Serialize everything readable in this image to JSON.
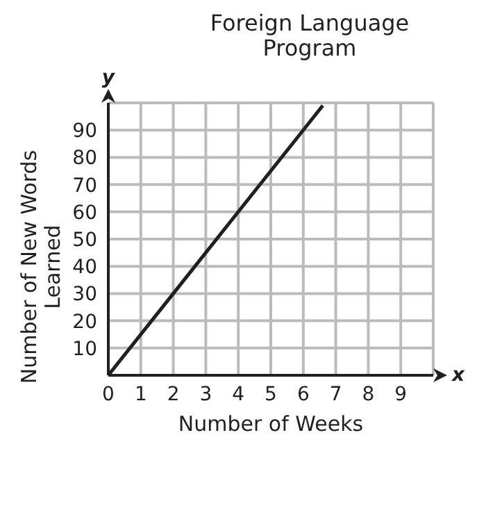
{
  "chart_data": {
    "type": "line",
    "title": "Foreign Language Program",
    "xlabel": "Number of Weeks",
    "ylabel": "Number of New Words Learned",
    "x": [
      0,
      2,
      4,
      6,
      6.6
    ],
    "series": [
      {
        "color": "#231f20",
        "values": [
          0,
          30,
          60,
          90,
          99
        ]
      }
    ],
    "xlim": [
      0,
      10
    ],
    "xticks": [
      0,
      1,
      2,
      3,
      4,
      5,
      6,
      7,
      8,
      9,
      {
        "value": 10,
        "label": null
      }
    ],
    "ylim": [
      0,
      100
    ],
    "yticks": [
      {
        "value": 0,
        "label": null
      },
      10,
      20,
      30,
      40,
      50,
      60,
      70,
      80,
      90,
      {
        "value": 100,
        "label": null
      }
    ],
    "grid": true,
    "marker": "none",
    "line_style": "solid",
    "legend": false,
    "annotations": [
      "x",
      "y"
    ]
  }
}
